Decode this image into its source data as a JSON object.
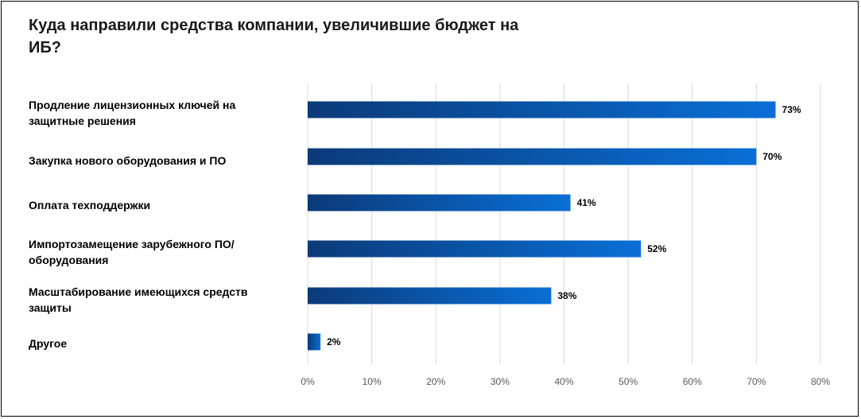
{
  "title": "Куда направили средства компании, увеличившие бюджет на ИБ?",
  "chart_data": {
    "type": "bar",
    "orientation": "horizontal",
    "categories": [
      "Продление лицензионных ключей на защитные решения",
      "Закупка нового оборудования и ПО",
      "Оплата техподдержки",
      "Импортозамещение зарубежного ПО/оборудования",
      "Масштабирование имеющихся средств защиты",
      "Другое"
    ],
    "values": [
      73,
      70,
      41,
      52,
      38,
      2
    ],
    "value_labels": [
      "73%",
      "70%",
      "41%",
      "52%",
      "38%",
      "2%"
    ],
    "xlim": [
      0,
      80
    ],
    "xticks": [
      "0%",
      "10%",
      "20%",
      "30%",
      "40%",
      "50%",
      "60%",
      "70%",
      "80%"
    ],
    "grid": true,
    "colors": {
      "bar_start": "#0b3a78",
      "bar_end": "#0a6fd6",
      "grid": "#d9d9d9"
    }
  }
}
